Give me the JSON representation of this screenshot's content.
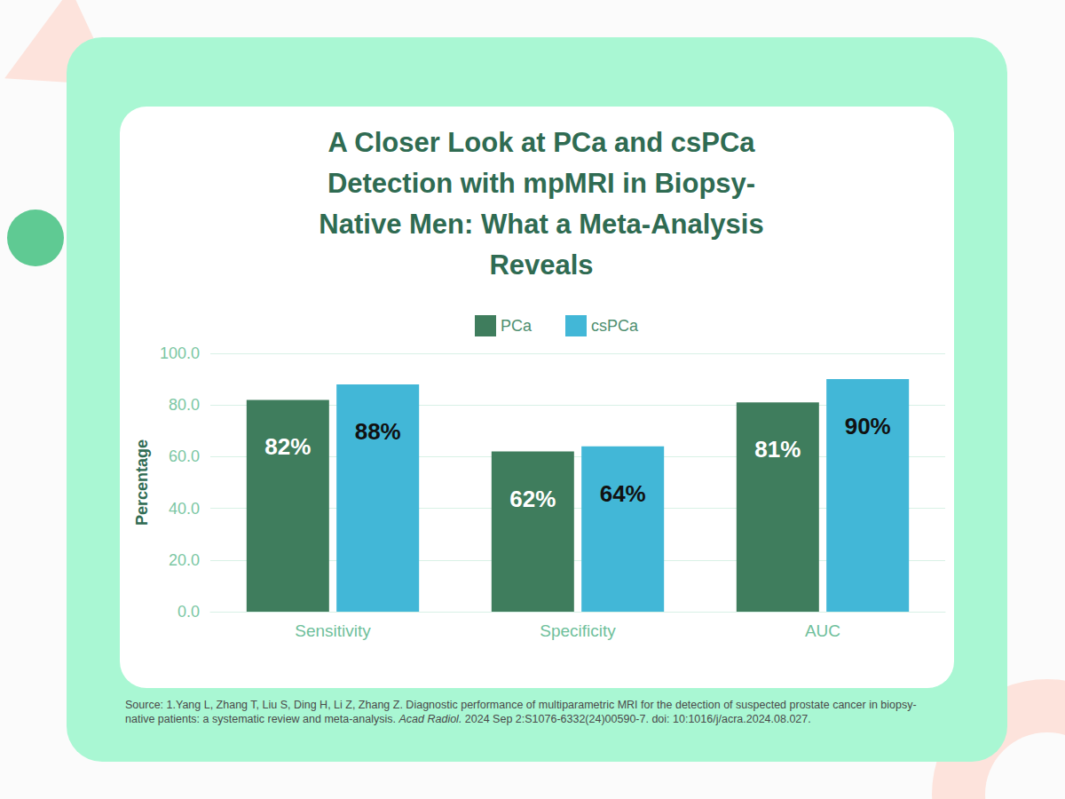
{
  "chart_data": {
    "type": "bar",
    "title": "A Closer Look at PCa and csPCa\nDetection with mpMRI in Biopsy-\nNative Men: What a Meta-Analysis\nReveals",
    "y_label": "Percentage",
    "categories": [
      "Sensitivity",
      "Specificity",
      "AUC"
    ],
    "series": [
      {
        "name": "PCa",
        "color": "#3f7d5d",
        "values": [
          82,
          62,
          81
        ],
        "value_labels": [
          "82%",
          "62%",
          "81%"
        ]
      },
      {
        "name": "csPCa",
        "color": "#42b7d7",
        "values": [
          88,
          64,
          90
        ],
        "value_labels": [
          "88%",
          "64%",
          "90%"
        ]
      }
    ],
    "ylim": [
      0,
      100
    ],
    "yticks": [
      {
        "value": 0,
        "label": "0.0"
      },
      {
        "value": 20,
        "label": "20.0"
      },
      {
        "value": 40,
        "label": "40.0"
      },
      {
        "value": 60,
        "label": "60.0"
      },
      {
        "value": 80,
        "label": "80.0"
      },
      {
        "value": 100,
        "label": "100.0"
      }
    ],
    "grid": true,
    "legend": "top",
    "data_labels": true,
    "source": [
      "Source: 1.Yang L, Zhang T, Liu S, Ding H, Li Z, Zhang Z. Diagnostic performance of multiparametric MRI for the detection of suspected prostate cancer in biopsy-native patients: a systematic review and meta-analysis. ",
      "Acad Radiol.",
      " 2024 Sep 2:S1076-6332(24)00590-7. doi: 10:1016/j/acra.2024.08.027."
    ]
  }
}
